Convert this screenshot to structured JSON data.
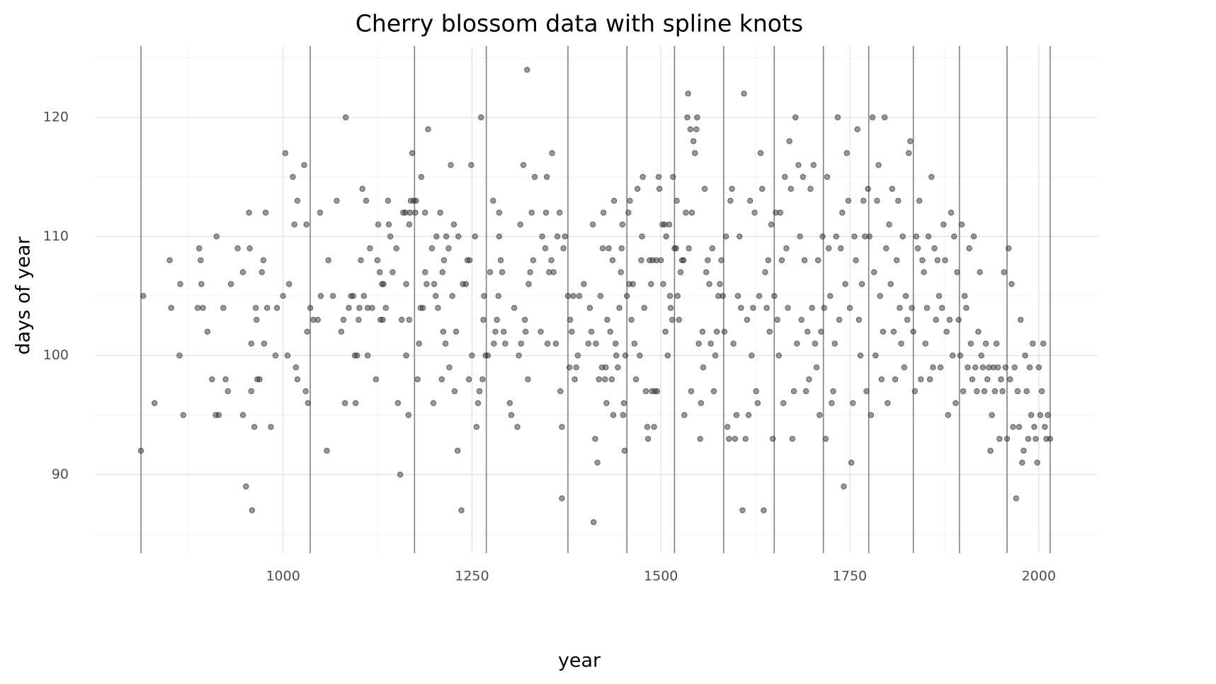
{
  "chart_data": {
    "type": "scatter",
    "title": "Cherry blossom data with spline knots",
    "x_label": "year",
    "y_label": "days of year",
    "color": "#333333",
    "knot_color": "#808080",
    "grid": true,
    "xlim": [
      752,
      2078
    ],
    "ylim": [
      83.4,
      126
    ],
    "xticks": [
      1000,
      1250,
      1500,
      1750,
      2000
    ],
    "yticks": [
      90,
      100,
      110,
      120
    ],
    "xticks_minor": [
      875,
      1125,
      1375,
      1625,
      1875
    ],
    "yticks_minor": [
      85,
      95,
      105,
      115,
      125
    ],
    "knots": [
      812,
      1036,
      1174,
      1269,
      1377,
      1455,
      1518,
      1583,
      1650,
      1715,
      1775,
      1834,
      1895,
      1958,
      2015
    ],
    "x": [
      812,
      815,
      830,
      850,
      852,
      863,
      864,
      868,
      887,
      889,
      891,
      892,
      894,
      900,
      906,
      911,
      912,
      915,
      921,
      924,
      927,
      931,
      940,
      947,
      947,
      951,
      955,
      956,
      958,
      958,
      959,
      962,
      964,
      965,
      966,
      969,
      972,
      974,
      975,
      977,
      979,
      984,
      990,
      992,
      1000,
      1003,
      1006,
      1008,
      1013,
      1015,
      1017,
      1019,
      1019,
      1028,
      1030,
      1031,
      1032,
      1033,
      1036,
      1040,
      1046,
      1049,
      1050,
      1058,
      1060,
      1066,
      1071,
      1077,
      1080,
      1082,
      1083,
      1087,
      1090,
      1093,
      1095,
      1096,
      1098,
      1100,
      1101,
      1103,
      1105,
      1107,
      1110,
      1112,
      1112,
      1115,
      1118,
      1123,
      1125,
      1126,
      1128,
      1129,
      1131,
      1132,
      1133,
      1136,
      1139,
      1140,
      1142,
      1145,
      1150,
      1152,
      1155,
      1157,
      1159,
      1162,
      1163,
      1163,
      1166,
      1167,
      1167,
      1168,
      1169,
      1171,
      1173,
      1175,
      1176,
      1178,
      1180,
      1182,
      1183,
      1185,
      1188,
      1188,
      1190,
      1192,
      1197,
      1199,
      1200,
      1202,
      1203,
      1205,
      1208,
      1210,
      1211,
      1212,
      1213,
      1215,
      1216,
      1219,
      1220,
      1222,
      1224,
      1226,
      1227,
      1229,
      1231,
      1232,
      1236,
      1238,
      1242,
      1244,
      1246,
      1247,
      1249,
      1250,
      1254,
      1256,
      1258,
      1260,
      1262,
      1264,
      1265,
      1266,
      1268,
      1271,
      1274,
      1278,
      1279,
      1281,
      1283,
      1285,
      1286,
      1286,
      1288,
      1290,
      1292,
      1294,
      1300,
      1302,
      1306,
      1310,
      1312,
      1314,
      1315,
      1318,
      1320,
      1321,
      1323,
      1324,
      1325,
      1327,
      1329,
      1331,
      1333,
      1341,
      1343,
      1347,
      1348,
      1349,
      1350,
      1352,
      1355,
      1356,
      1358,
      1361,
      1363,
      1366,
      1367,
      1369,
      1369,
      1371,
      1373,
      1377,
      1379,
      1380,
      1382,
      1384,
      1386,
      1388,
      1390,
      1392,
      1398,
      1404,
      1406,
      1408,
      1410,
      1411,
      1413,
      1414,
      1416,
      1418,
      1420,
      1422,
      1423,
      1424,
      1426,
      1427,
      1428,
      1429,
      1431,
      1433,
      1435,
      1436,
      1437,
      1438,
      1440,
      1441,
      1443,
      1445,
      1447,
      1448,
      1449,
      1450,
      1451,
      1452,
      1453,
      1455,
      1457,
      1458,
      1459,
      1461,
      1463,
      1465,
      1467,
      1469,
      1472,
      1474,
      1475,
      1476,
      1478,
      1480,
      1482,
      1483,
      1485,
      1487,
      1488,
      1489,
      1491,
      1492,
      1494,
      1495,
      1497,
      1498,
      1500,
      1502,
      1503,
      1505,
      1506,
      1507,
      1509,
      1511,
      1512,
      1513,
      1515,
      1516,
      1518,
      1520,
      1521,
      1522,
      1524,
      1526,
      1528,
      1530,
      1531,
      1533,
      1535,
      1536,
      1537,
      1539,
      1540,
      1541,
      1543,
      1545,
      1547,
      1548,
      1550,
      1552,
      1553,
      1555,
      1556,
      1558,
      1560,
      1562,
      1564,
      1566,
      1568,
      1570,
      1572,
      1574,
      1576,
      1578,
      1580,
      1582,
      1584,
      1586,
      1588,
      1590,
      1592,
      1594,
      1596,
      1598,
      1600,
      1602,
      1604,
      1606,
      1608,
      1610,
      1612,
      1614,
      1616,
      1618,
      1620,
      1622,
      1624,
      1626,
      1628,
      1630,
      1632,
      1634,
      1636,
      1638,
      1640,
      1642,
      1644,
      1646,
      1648,
      1650,
      1652,
      1654,
      1656,
      1658,
      1660,
      1662,
      1664,
      1666,
      1668,
      1670,
      1672,
      1674,
      1676,
      1678,
      1680,
      1682,
      1684,
      1686,
      1688,
      1690,
      1692,
      1694,
      1696,
      1698,
      1700,
      1702,
      1704,
      1706,
      1708,
      1710,
      1712,
      1714,
      1716,
      1718,
      1720,
      1722,
      1724,
      1726,
      1728,
      1730,
      1732,
      1734,
      1736,
      1738,
      1740,
      1742,
      1744,
      1746,
      1748,
      1750,
      1752,
      1754,
      1756,
      1758,
      1760,
      1762,
      1764,
      1766,
      1768,
      1770,
      1772,
      1774,
      1776,
      1778,
      1780,
      1782,
      1784,
      1786,
      1788,
      1790,
      1792,
      1794,
      1796,
      1798,
      1800,
      1802,
      1804,
      1806,
      1808,
      1810,
      1812,
      1814,
      1816,
      1818,
      1820,
      1822,
      1824,
      1826,
      1828,
      1830,
      1832,
      1834,
      1836,
      1838,
      1840,
      1842,
      1844,
      1846,
      1848,
      1850,
      1852,
      1854,
      1856,
      1858,
      1860,
      1862,
      1864,
      1866,
      1868,
      1870,
      1872,
      1874,
      1876,
      1878,
      1880,
      1882,
      1884,
      1886,
      1888,
      1890,
      1892,
      1894,
      1896,
      1898,
      1900,
      1902,
      1904,
      1906,
      1908,
      1910,
      1912,
      1914,
      1916,
      1918,
      1920,
      1922,
      1924,
      1926,
      1928,
      1930,
      1932,
      1934,
      1936,
      1938,
      1940,
      1942,
      1944,
      1946,
      1948,
      1950,
      1952,
      1954,
      1956,
      1958,
      1960,
      1962,
      1964,
      1966,
      1968,
      1970,
      1972,
      1974,
      1976,
      1978,
      1980,
      1982,
      1984,
      1986,
      1988,
      1990,
      1992,
      1994,
      1996,
      1998,
      2000,
      2002,
      2004,
      2006,
      2008,
      2010,
      2012,
      2015
    ],
    "values": [
      92,
      105,
      96,
      108,
      104,
      100,
      106,
      95,
      104,
      109,
      108,
      106,
      104,
      102,
      98,
      95,
      110,
      95,
      104,
      98,
      97,
      106,
      109,
      95,
      107,
      89,
      112,
      109,
      101,
      97,
      87,
      94,
      104,
      103,
      98,
      98,
      107,
      108,
      101,
      112,
      104,
      94,
      100,
      104,
      105,
      117,
      100,
      106,
      115,
      111,
      99,
      113,
      98,
      116,
      97,
      111,
      102,
      96,
      104,
      103,
      103,
      112,
      105,
      92,
      108,
      105,
      113,
      102,
      103,
      96,
      120,
      104,
      105,
      105,
      100,
      96,
      100,
      103,
      104,
      108,
      114,
      105,
      113,
      104,
      100,
      109,
      104,
      98,
      108,
      111,
      107,
      103,
      106,
      103,
      106,
      104,
      113,
      111,
      110,
      107,
      109,
      96,
      90,
      103,
      112,
      112,
      106,
      100,
      95,
      111,
      103,
      112,
      113,
      117,
      113,
      112,
      113,
      98,
      101,
      104,
      115,
      104,
      107,
      112,
      106,
      119,
      109,
      96,
      106,
      105,
      110,
      104,
      112,
      98,
      107,
      102,
      108,
      101,
      110,
      109,
      99,
      116,
      105,
      111,
      97,
      102,
      92,
      110,
      87,
      106,
      106,
      108,
      98,
      108,
      116,
      100,
      110,
      94,
      96,
      97,
      120,
      98,
      103,
      105,
      100,
      100,
      107,
      113,
      101,
      102,
      103,
      105,
      110,
      112,
      108,
      107,
      102,
      101,
      96,
      95,
      104,
      94,
      100,
      111,
      101,
      116,
      103,
      102,
      124,
      98,
      106,
      107,
      112,
      108,
      115,
      102,
      110,
      109,
      112,
      115,
      101,
      107,
      108,
      117,
      107,
      101,
      110,
      112,
      97,
      94,
      88,
      109,
      110,
      105,
      99,
      103,
      102,
      105,
      98,
      99,
      100,
      105,
      106,
      101,
      104,
      102,
      111,
      86,
      93,
      101,
      91,
      98,
      105,
      99,
      109,
      112,
      98,
      99,
      96,
      103,
      109,
      102,
      98,
      108,
      95,
      113,
      101,
      100,
      99,
      104,
      107,
      109,
      111,
      95,
      96,
      92,
      100,
      105,
      112,
      106,
      113,
      103,
      106,
      101,
      98,
      114,
      100,
      108,
      110,
      115,
      104,
      97,
      94,
      93,
      108,
      106,
      97,
      108,
      94,
      97,
      108,
      97,
      115,
      114,
      108,
      111,
      106,
      111,
      102,
      110,
      100,
      111,
      105,
      104,
      103,
      115,
      109,
      109,
      113,
      105,
      103,
      107,
      108,
      108,
      95,
      112,
      120,
      122,
      109,
      119,
      97,
      112,
      118,
      117,
      119,
      120,
      101,
      93,
      96,
      102,
      99,
      114,
      107,
      108,
      106,
      101,
      109,
      97,
      100,
      102,
      105,
      106,
      108,
      105,
      102,
      110,
      94,
      93,
      113,
      114,
      101,
      93,
      95,
      105,
      110,
      104,
      87,
      122,
      93,
      103,
      95,
      113,
      100,
      104,
      112,
      97,
      96,
      105,
      117,
      114,
      87,
      107,
      104,
      108,
      102,
      111,
      93,
      105,
      112,
      103,
      100,
      112,
      108,
      96,
      115,
      109,
      104,
      118,
      114,
      93,
      97,
      120,
      101,
      116,
      110,
      103,
      115,
      108,
      97,
      102,
      98,
      114,
      104,
      116,
      101,
      99,
      108,
      95,
      102,
      110,
      104,
      93,
      115,
      109,
      105,
      96,
      97,
      101,
      110,
      120,
      103,
      109,
      112,
      89,
      106,
      117,
      113,
      104,
      91,
      96,
      110,
      108,
      119,
      103,
      100,
      106,
      113,
      110,
      97,
      114,
      110,
      95,
      120,
      107,
      100,
      113,
      116,
      105,
      98,
      102,
      120,
      109,
      96,
      111,
      106,
      114,
      102,
      98,
      108,
      113,
      104,
      101,
      110,
      99,
      105,
      103,
      117,
      118,
      104,
      102,
      97,
      110,
      109,
      113,
      98,
      108,
      107,
      101,
      104,
      110,
      98,
      115,
      99,
      109,
      103,
      108,
      105,
      99,
      104,
      111,
      108,
      102,
      95,
      103,
      112,
      100,
      110,
      96,
      107,
      103,
      100,
      111,
      97,
      105,
      104,
      99,
      109,
      101,
      98,
      110,
      99,
      97,
      102,
      107,
      100,
      99,
      97,
      101,
      98,
      99,
      92,
      95,
      99,
      97,
      101,
      99,
      93,
      98,
      97,
      107,
      99,
      93,
      109,
      98,
      106,
      94,
      99,
      88,
      97,
      94,
      103,
      91,
      92,
      100,
      97,
      93,
      99,
      95,
      101,
      94,
      93,
      91,
      99,
      95,
      97,
      101,
      94,
      93,
      95,
      93
    ]
  }
}
